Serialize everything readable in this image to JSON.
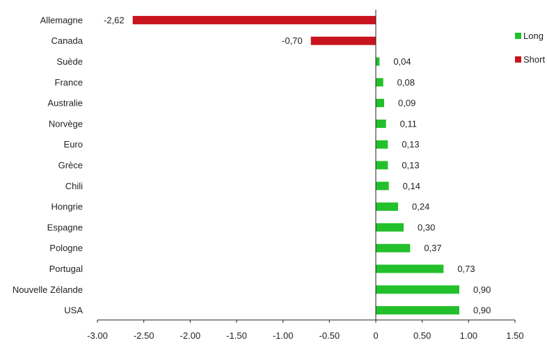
{
  "chart_data": {
    "type": "bar",
    "orientation": "horizontal",
    "categories": [
      "Allemagne",
      "Canada",
      "Suède",
      "France",
      "Australie",
      "Norvège",
      "Euro",
      "Grèce",
      "Chili",
      "Hongrie",
      "Espagne",
      "Pologne",
      "Portugal",
      "Nouvelle Zélande",
      "USA"
    ],
    "values": [
      -2.62,
      -0.7,
      0.04,
      0.08,
      0.09,
      0.11,
      0.13,
      0.13,
      0.14,
      0.24,
      0.3,
      0.37,
      0.73,
      0.9,
      0.9
    ],
    "value_labels": [
      "-2,62",
      "-0,70",
      "0,04",
      "0,08",
      "0,09",
      "0,11",
      "0,13",
      "0,13",
      "0,14",
      "0,24",
      "0,30",
      "0,37",
      "0,73",
      "0,90",
      "0,90"
    ],
    "series": [
      {
        "name": "Long",
        "color": "#22c02a"
      },
      {
        "name": "Short",
        "color": "#c8141e"
      }
    ],
    "xlim": [
      -3.0,
      1.5
    ],
    "xticks": [
      -3.0,
      -2.5,
      -2.0,
      -1.5,
      -1.0,
      -0.5,
      0,
      0.5,
      1.0,
      1.5
    ],
    "xtick_labels": [
      "-3.00",
      "-2.50",
      "-2.00",
      "-1.50",
      "-1.00",
      "-0.50",
      "0",
      "0.50",
      "1.00",
      "1.50"
    ],
    "title": "",
    "xlabel": "",
    "ylabel": "",
    "grid": false,
    "legend_position": "top-right"
  }
}
